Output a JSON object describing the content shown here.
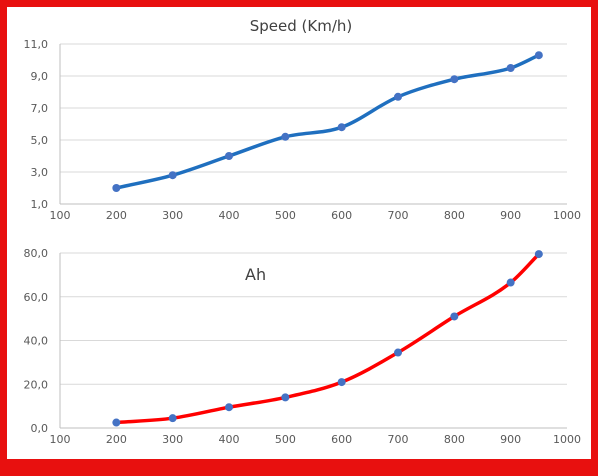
{
  "colors": {
    "frame": "#e8100f",
    "marker": "#4472c4"
  },
  "chart_data": [
    {
      "type": "line",
      "title": "Speed (Km/h)",
      "x": [
        200,
        300,
        400,
        500,
        600,
        700,
        800,
        900,
        950
      ],
      "series": [
        {
          "values": [
            2.0,
            2.8,
            4.0,
            5.2,
            5.8,
            7.7,
            8.8,
            9.5,
            10.3
          ],
          "color": "#1f6fbf"
        }
      ],
      "xlim": [
        100,
        1000
      ],
      "ylim": [
        1,
        11
      ],
      "xticks": [
        100,
        200,
        300,
        400,
        500,
        600,
        700,
        800,
        900,
        1000
      ],
      "yticks": [
        1,
        3,
        5,
        7,
        9,
        11
      ],
      "xtick_labels": [
        "100",
        "200",
        "300",
        "400",
        "500",
        "600",
        "700",
        "800",
        "900",
        "1000"
      ],
      "ytick_labels": [
        "1,0",
        "3,0",
        "5,0",
        "7,0",
        "9,0",
        "11,0"
      ],
      "grid": true,
      "smooth": true
    },
    {
      "type": "line",
      "title": "",
      "annotation": "Ah",
      "x": [
        200,
        300,
        400,
        500,
        600,
        700,
        800,
        900,
        950
      ],
      "series": [
        {
          "values": [
            2.5,
            4.5,
            9.5,
            14.0,
            21.0,
            34.5,
            51.0,
            66.5,
            79.5
          ],
          "color": "#ff0000"
        }
      ],
      "xlim": [
        100,
        1000
      ],
      "ylim": [
        0,
        80
      ],
      "xticks": [
        100,
        200,
        300,
        400,
        500,
        600,
        700,
        800,
        900,
        1000
      ],
      "yticks": [
        0,
        20,
        40,
        60,
        80
      ],
      "xtick_labels": [
        "100",
        "200",
        "300",
        "400",
        "500",
        "600",
        "700",
        "800",
        "900",
        "1000"
      ],
      "ytick_labels": [
        "0,0",
        "20,0",
        "40,0",
        "60,0",
        "80,0"
      ],
      "grid": true,
      "smooth": true
    }
  ]
}
